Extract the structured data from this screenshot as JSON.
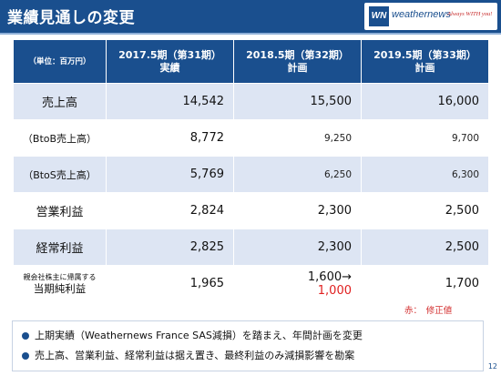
{
  "header": {
    "title": "業績見通しの変更",
    "logo_mark": "WN",
    "logo_text": "weathernews",
    "logo_tagline": "Always WITH you!"
  },
  "table": {
    "unit_header": "（単位：百万円）",
    "columns": [
      {
        "line1": "2017.5期（第31期）",
        "line2": "実績"
      },
      {
        "line1": "2018.5期（第32期）",
        "line2": "計画"
      },
      {
        "line1": "2019.5期（第33期）",
        "line2": "計画"
      }
    ],
    "rows": [
      {
        "label": "売上高",
        "values": [
          "14,542",
          "15,500",
          "16,000"
        ]
      },
      {
        "label": "（BtoB売上高）",
        "values": [
          "8,772",
          "9,250",
          "9,700"
        ]
      },
      {
        "label": "（BtoS売上高）",
        "values": [
          "5,769",
          "6,250",
          "6,300"
        ]
      },
      {
        "label": "営業利益",
        "values": [
          "2,824",
          "2,300",
          "2,500"
        ]
      },
      {
        "label": "経常利益",
        "values": [
          "2,825",
          "2,300",
          "2,500"
        ]
      }
    ],
    "net_income": {
      "label_line1": "親会社株主に帰属する",
      "label_line2": "当期純利益",
      "actual": "1,965",
      "plan_original": "1,600→",
      "plan_revised": "1,000",
      "plan_next": "1,700"
    }
  },
  "legend": "赤：　修正値",
  "notes": [
    "上期実績（Weathernews France SAS減損）を踏まえ、年間計画を変更",
    "売上高、営業利益、経常利益は据え置き、最終利益のみ減損影響を勘案"
  ],
  "page_number": "12",
  "colors": {
    "header_blue": "#1a4f8e",
    "row_shade": "#dde5f3",
    "revised_red": "#e02020"
  }
}
